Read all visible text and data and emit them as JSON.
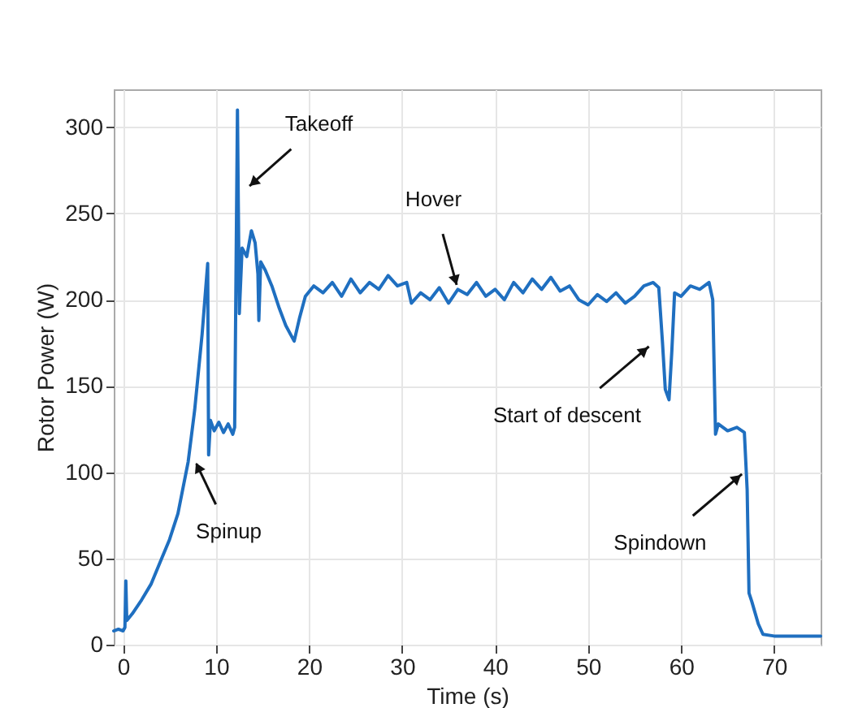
{
  "chart_data": {
    "type": "line",
    "xlabel": "Time (s)",
    "ylabel": "Rotor Power (W)",
    "x": [
      -1,
      -0.5,
      0,
      0.2,
      0.3,
      0.4,
      1,
      2,
      3,
      4,
      5,
      5.9,
      7,
      7.7,
      8.5,
      9.1,
      9.2,
      9.4,
      9.8,
      10.3,
      10.8,
      11.3,
      11.8,
      12.0,
      12.3,
      12.5,
      12.8,
      13.3,
      13.8,
      14.2,
      14.5,
      14.6,
      14.8,
      15.3,
      16,
      16.8,
      17.5,
      18.4,
      19,
      19.6,
      20.5,
      21.5,
      22.5,
      23.5,
      24.5,
      25.5,
      26.5,
      27.5,
      28.5,
      29.5,
      30.5,
      31,
      32,
      33,
      34,
      35,
      36,
      37,
      38,
      39,
      40,
      41,
      42,
      43,
      44,
      45,
      46,
      47,
      48,
      49,
      50,
      51,
      52,
      53,
      54,
      55,
      56,
      57,
      57.6,
      58.0,
      58.3,
      58.7,
      59.0,
      59.3,
      60,
      61,
      62,
      63,
      63.4,
      63.7,
      64,
      65,
      66,
      66.8,
      67.1,
      67.3,
      67.6,
      68.3,
      68.8,
      70,
      72,
      75
    ],
    "series": [
      {
        "color": "#1f6fc0",
        "values": [
          8,
          9,
          8,
          10,
          37,
          14,
          18,
          26,
          35,
          48,
          61,
          76,
          106,
          136,
          180,
          221,
          110,
          130,
          124,
          129,
          123,
          128,
          122,
          126,
          310,
          192,
          230,
          225,
          240,
          233,
          215,
          188,
          222,
          217,
          208,
          195,
          185,
          176,
          190,
          202,
          208,
          204,
          210,
          202,
          212,
          204,
          210,
          206,
          214,
          208,
          210,
          198,
          204,
          200,
          207,
          198,
          206,
          203,
          210,
          202,
          206,
          200,
          210,
          204,
          212,
          206,
          213,
          205,
          208,
          200,
          197,
          203,
          199,
          204,
          198,
          202,
          208,
          210,
          207,
          175,
          148,
          142,
          170,
          204,
          202,
          208,
          206,
          210,
          200,
          122,
          128,
          124,
          126,
          123,
          90,
          30,
          25,
          12,
          6,
          5,
          5,
          5
        ]
      }
    ],
    "xlim": [
      -1,
      75
    ],
    "ylim": [
      0,
      322
    ],
    "xticks": [
      0,
      10,
      20,
      30,
      40,
      50,
      60,
      70
    ],
    "yticks": [
      0,
      50,
      100,
      150,
      200,
      250,
      300
    ],
    "grid": true,
    "line_style": "solid",
    "marker": "none",
    "annotations": [
      {
        "text": "Takeoff",
        "x": 13.2,
        "y": 264
      },
      {
        "text": "Hover",
        "x": 36,
        "y": 206
      },
      {
        "text": "Spinup",
        "x": 7.7,
        "y": 107
      },
      {
        "text": "Start of descent",
        "x": 57,
        "y": 175
      },
      {
        "text": "Spindown",
        "x": 67,
        "y": 101
      }
    ]
  }
}
